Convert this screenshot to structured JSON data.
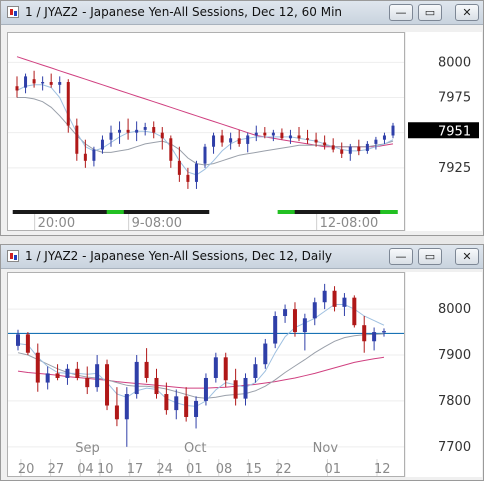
{
  "windows": [
    {
      "title": "1 / JYAZ2 - Japanese Yen-All Sessions, Dec 12, 60 Min",
      "buttons": {
        "minimize": "—",
        "restore": "▭",
        "close": "✕"
      }
    },
    {
      "title": "1 / JYAZ2 - Japanese Yen-All Sessions, Dec 12, Daily",
      "buttons": {
        "minimize": "—",
        "restore": "▭",
        "close": "✕"
      }
    }
  ],
  "colors": {
    "up": "#2f3fa8",
    "down": "#b01818",
    "ma_long": "#d04080",
    "ma_mid": "#9aa0aa",
    "ma_short": "#9fc0e0",
    "ref_line": "#1a73b5"
  },
  "chart_data": [
    {
      "type": "candlestick",
      "title": "",
      "ylim": [
        7900,
        8018
      ],
      "yticks": [
        8000,
        7975,
        7950,
        7925
      ],
      "ytick_labels": [
        "8000",
        "7975",
        "",
        "7925"
      ],
      "price_label": "7951",
      "x_labels": [
        "20:00",
        "9-08:00",
        "12-08:00"
      ],
      "x_label_index": [
        3,
        14,
        36
      ],
      "candles": [
        [
          7983,
          7990,
          7975,
          7980
        ],
        [
          7982,
          7992,
          7978,
          7990
        ],
        [
          7988,
          7994,
          7982,
          7985
        ],
        [
          7985,
          7990,
          7980,
          7986
        ],
        [
          7986,
          7992,
          7982,
          7984
        ],
        [
          7984,
          7990,
          7978,
          7986
        ],
        [
          7986,
          7988,
          7950,
          7955
        ],
        [
          7955,
          7960,
          7930,
          7935
        ],
        [
          7935,
          7945,
          7925,
          7930
        ],
        [
          7930,
          7940,
          7926,
          7938
        ],
        [
          7938,
          7948,
          7935,
          7945
        ],
        [
          7945,
          7955,
          7940,
          7950
        ],
        [
          7950,
          7958,
          7942,
          7952
        ],
        [
          7952,
          7960,
          7945,
          7950
        ],
        [
          7950,
          7958,
          7944,
          7952
        ],
        [
          7952,
          7957,
          7948,
          7954
        ],
        [
          7954,
          7958,
          7946,
          7950
        ],
        [
          7950,
          7954,
          7938,
          7946
        ],
        [
          7946,
          7948,
          7925,
          7930
        ],
        [
          7930,
          7940,
          7915,
          7920
        ],
        [
          7920,
          7925,
          7910,
          7915
        ],
        [
          7915,
          7930,
          7910,
          7928
        ],
        [
          7928,
          7942,
          7925,
          7940
        ],
        [
          7940,
          7950,
          7935,
          7948
        ],
        [
          7948,
          7952,
          7940,
          7943
        ],
        [
          7943,
          7950,
          7938,
          7946
        ],
        [
          7946,
          7952,
          7940,
          7942
        ],
        [
          7942,
          7950,
          7936,
          7948
        ],
        [
          7948,
          7955,
          7944,
          7950
        ],
        [
          7950,
          7954,
          7946,
          7948
        ],
        [
          7948,
          7952,
          7944,
          7950
        ],
        [
          7950,
          7953,
          7945,
          7946
        ],
        [
          7946,
          7952,
          7942,
          7948
        ],
        [
          7948,
          7954,
          7944,
          7946
        ],
        [
          7946,
          7952,
          7942,
          7945
        ],
        [
          7945,
          7950,
          7940,
          7943
        ],
        [
          7943,
          7948,
          7938,
          7941
        ],
        [
          7941,
          7946,
          7936,
          7938
        ],
        [
          7938,
          7943,
          7932,
          7935
        ],
        [
          7935,
          7942,
          7930,
          7940
        ],
        [
          7940,
          7945,
          7934,
          7937
        ],
        [
          7937,
          7944,
          7935,
          7942
        ],
        [
          7942,
          7947,
          7938,
          7945
        ],
        [
          7945,
          7950,
          7942,
          7948
        ],
        [
          7948,
          7957,
          7946,
          7955
        ]
      ],
      "ma_long": [
        8004,
        8002,
        8000,
        7998,
        7996,
        7994,
        7992,
        7990,
        7988,
        7986,
        7984,
        7982,
        7980,
        7978,
        7976,
        7974,
        7972,
        7970,
        7968,
        7966,
        7964,
        7962,
        7960,
        7958,
        7956,
        7954,
        7952,
        7950,
        7948,
        7947,
        7946,
        7945,
        7944,
        7943,
        7942,
        7941,
        7940,
        7940,
        7940,
        7940,
        7940,
        7940,
        7940,
        7941,
        7942
      ],
      "ma_mid": [
        7975,
        7975,
        7974,
        7972,
        7968,
        7962,
        7955,
        7948,
        7942,
        7938,
        7936,
        7936,
        7937,
        7938,
        7940,
        7942,
        7943,
        7944,
        7942,
        7938,
        7932,
        7928,
        7927,
        7928,
        7930,
        7932,
        7934,
        7935,
        7936,
        7937,
        7938,
        7939,
        7940,
        7941,
        7941,
        7941,
        7941,
        7940,
        7940,
        7940,
        7940,
        7940,
        7941,
        7942,
        7944
      ],
      "ma_short": [
        7980,
        7983,
        7984,
        7984,
        7982,
        7975,
        7962,
        7950,
        7940,
        7937,
        7939,
        7943,
        7947,
        7950,
        7951,
        7951,
        7950,
        7947,
        7940,
        7930,
        7922,
        7920,
        7924,
        7930,
        7937,
        7942,
        7945,
        7946,
        7947,
        7947,
        7947,
        7947,
        7947,
        7946,
        7945,
        7944,
        7942,
        7940,
        7938,
        7937,
        7937,
        7938,
        7940,
        7942,
        7945
      ],
      "session_bar": [
        "d",
        "d",
        "d",
        "d",
        "d",
        "d",
        "d",
        "d",
        "d",
        "d",
        "d",
        "g",
        "g",
        "d",
        "d",
        "d",
        "d",
        "d",
        "d",
        "d",
        "d",
        "d",
        "d",
        "w",
        "w",
        "w",
        "w",
        "w",
        "w",
        "w",
        "w",
        "g",
        "g",
        "d",
        "d",
        "d",
        "d",
        "d",
        "d",
        "d",
        "d",
        "d",
        "d",
        "g",
        "g"
      ]
    },
    {
      "type": "candlestick",
      "title": "",
      "ylim": [
        7680,
        8070
      ],
      "yticks": [
        8000,
        7900,
        7800,
        7700
      ],
      "ytick_labels": [
        "8000",
        "7900",
        "7800",
        "7700"
      ],
      "ref_line": 7947,
      "x_day_labels": [
        [
          "20",
          1
        ],
        [
          "27",
          4
        ],
        [
          "04",
          7
        ],
        [
          "10",
          9
        ],
        [
          "17",
          12
        ],
        [
          "24",
          15
        ],
        [
          "01",
          18
        ],
        [
          "08",
          21
        ],
        [
          "15",
          24
        ],
        [
          "22",
          27
        ],
        [
          "01",
          32
        ],
        [
          "12",
          37
        ]
      ],
      "x_month_labels": [
        [
          "Sep",
          7
        ],
        [
          "Oct",
          18
        ],
        [
          "Nov",
          31
        ]
      ],
      "candles": [
        [
          7920,
          7955,
          7910,
          7945
        ],
        [
          7945,
          7950,
          7900,
          7905
        ],
        [
          7905,
          7925,
          7820,
          7840
        ],
        [
          7840,
          7875,
          7825,
          7860
        ],
        [
          7860,
          7880,
          7845,
          7850
        ],
        [
          7850,
          7880,
          7835,
          7870
        ],
        [
          7870,
          7885,
          7845,
          7850
        ],
        [
          7850,
          7875,
          7815,
          7830
        ],
        [
          7830,
          7900,
          7820,
          7880
        ],
        [
          7880,
          7890,
          7780,
          7790
        ],
        [
          7790,
          7830,
          7745,
          7760
        ],
        [
          7760,
          7830,
          7700,
          7815
        ],
        [
          7815,
          7900,
          7805,
          7885
        ],
        [
          7885,
          7915,
          7840,
          7850
        ],
        [
          7850,
          7870,
          7805,
          7815
        ],
        [
          7815,
          7840,
          7770,
          7780
        ],
        [
          7780,
          7825,
          7760,
          7810
        ],
        [
          7810,
          7830,
          7755,
          7765
        ],
        [
          7765,
          7810,
          7740,
          7800
        ],
        [
          7800,
          7860,
          7790,
          7850
        ],
        [
          7850,
          7905,
          7840,
          7895
        ],
        [
          7895,
          7905,
          7830,
          7845
        ],
        [
          7845,
          7870,
          7790,
          7805
        ],
        [
          7805,
          7860,
          7790,
          7850
        ],
        [
          7850,
          7895,
          7840,
          7880
        ],
        [
          7880,
          7935,
          7870,
          7925
        ],
        [
          7925,
          7995,
          7915,
          7985
        ],
        [
          7985,
          8010,
          7970,
          8000
        ],
        [
          8000,
          8015,
          7940,
          7950
        ],
        [
          7950,
          7990,
          7910,
          7980
        ],
        [
          7980,
          8025,
          7965,
          8015
        ],
        [
          8015,
          8055,
          8000,
          8040
        ],
        [
          8040,
          8050,
          7995,
          8005
        ],
        [
          8005,
          8035,
          7985,
          8025
        ],
        [
          8025,
          8030,
          7960,
          7965
        ],
        [
          7965,
          7985,
          7905,
          7930
        ],
        [
          7930,
          7960,
          7910,
          7950
        ],
        [
          7950,
          7958,
          7940,
          7952
        ]
      ],
      "ma_long": [
        7865,
        7862,
        7860,
        7858,
        7856,
        7853,
        7851,
        7849,
        7847,
        7845,
        7842,
        7840,
        7838,
        7836,
        7834,
        7832,
        7830,
        7828,
        7828,
        7828,
        7829,
        7830,
        7832,
        7834,
        7836,
        7839,
        7842,
        7846,
        7850,
        7855,
        7860,
        7866,
        7872,
        7878,
        7884,
        7888,
        7892,
        7895
      ],
      "ma_mid": [
        7905,
        7900,
        7890,
        7880,
        7870,
        7862,
        7856,
        7852,
        7850,
        7846,
        7840,
        7834,
        7832,
        7832,
        7830,
        7826,
        7820,
        7814,
        7808,
        7806,
        7808,
        7812,
        7814,
        7816,
        7822,
        7832,
        7846,
        7862,
        7876,
        7890,
        7905,
        7918,
        7930,
        7938,
        7942,
        7944,
        7945,
        7946
      ],
      "ma_short": [
        7925,
        7922,
        7895,
        7875,
        7862,
        7860,
        7860,
        7858,
        7860,
        7840,
        7815,
        7808,
        7822,
        7828,
        7825,
        7805,
        7796,
        7790,
        7788,
        7800,
        7824,
        7840,
        7835,
        7830,
        7840,
        7865,
        7905,
        7940,
        7960,
        7970,
        7980,
        7995,
        8010,
        8010,
        8000,
        7985,
        7975,
        7965
      ]
    }
  ]
}
